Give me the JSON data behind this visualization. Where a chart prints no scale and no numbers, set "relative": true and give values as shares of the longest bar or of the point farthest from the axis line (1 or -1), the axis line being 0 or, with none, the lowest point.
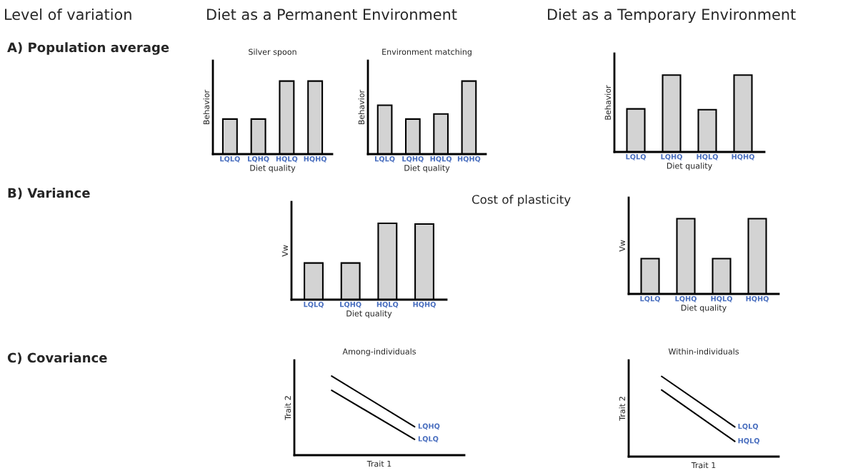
{
  "chart_data": [
    {
      "type": "other",
      "annotations": [
        "Level of variation",
        "Diet as a Permanent Environment",
        "Diet as a Temporary Environment",
        "A) Population average",
        "B) Variance",
        "C) Covariance",
        "Cost of plasticity"
      ]
    },
    {
      "type": "bar",
      "relative": true,
      "title": "Silver spoon",
      "xlabel": "Diet quality",
      "ylabel": "Behavior",
      "categories": [
        "LQLQ",
        "LQHQ",
        "HQLQ",
        "HQHQ"
      ],
      "values": [
        0.48,
        0.48,
        1,
        1
      ],
      "color": "#d3d3d3"
    },
    {
      "type": "bar",
      "relative": true,
      "title": "Environment matching",
      "xlabel": "Diet quality",
      "ylabel": "Behavior",
      "categories": [
        "LQLQ",
        "LQHQ",
        "HQLQ",
        "HQHQ"
      ],
      "values": [
        0.67,
        0.48,
        0.55,
        1
      ],
      "color": "#d3d3d3"
    },
    {
      "type": "bar",
      "relative": true,
      "xlabel": "Diet quality",
      "ylabel": "Behavior",
      "categories": [
        "LQLQ",
        "LQHQ",
        "HQLQ",
        "HQHQ"
      ],
      "values": [
        0.56,
        1,
        0.55,
        1
      ],
      "color": "#d3d3d3"
    },
    {
      "type": "bar",
      "relative": true,
      "xlabel": "Diet quality",
      "ylabel": "Vw",
      "categories": [
        "LQLQ",
        "LQHQ",
        "HQLQ",
        "HQHQ"
      ],
      "values": [
        0.48,
        0.48,
        1,
        0.99
      ],
      "color": "#d3d3d3"
    },
    {
      "type": "bar",
      "relative": true,
      "xlabel": "Diet quality",
      "ylabel": "Vw",
      "categories": [
        "LQLQ",
        "LQHQ",
        "HQLQ",
        "HQHQ"
      ],
      "values": [
        0.47,
        1,
        0.47,
        1
      ],
      "color": "#d3d3d3"
    },
    {
      "type": "line",
      "relative": true,
      "title": "Among-individuals",
      "xlabel": "Trait 1",
      "ylabel": "Trait 2",
      "categories": [
        null,
        null
      ],
      "series": [
        {
          "name": "LQHQ",
          "color": "#000000",
          "values": [
            1,
            0.36
          ]
        },
        {
          "name": "LQLQ",
          "color": "#000000",
          "values": [
            0.82,
            0.2
          ]
        }
      ]
    },
    {
      "type": "line",
      "relative": true,
      "title": "Within-individuals",
      "xlabel": "Trait 1",
      "ylabel": "Trait 2",
      "categories": [
        null,
        null
      ],
      "series": [
        {
          "name": "LQLQ",
          "color": "#000000",
          "values": [
            1,
            0.37
          ]
        },
        {
          "name": "HQLQ",
          "color": "#000000",
          "values": [
            0.83,
            0.19
          ]
        }
      ]
    }
  ]
}
